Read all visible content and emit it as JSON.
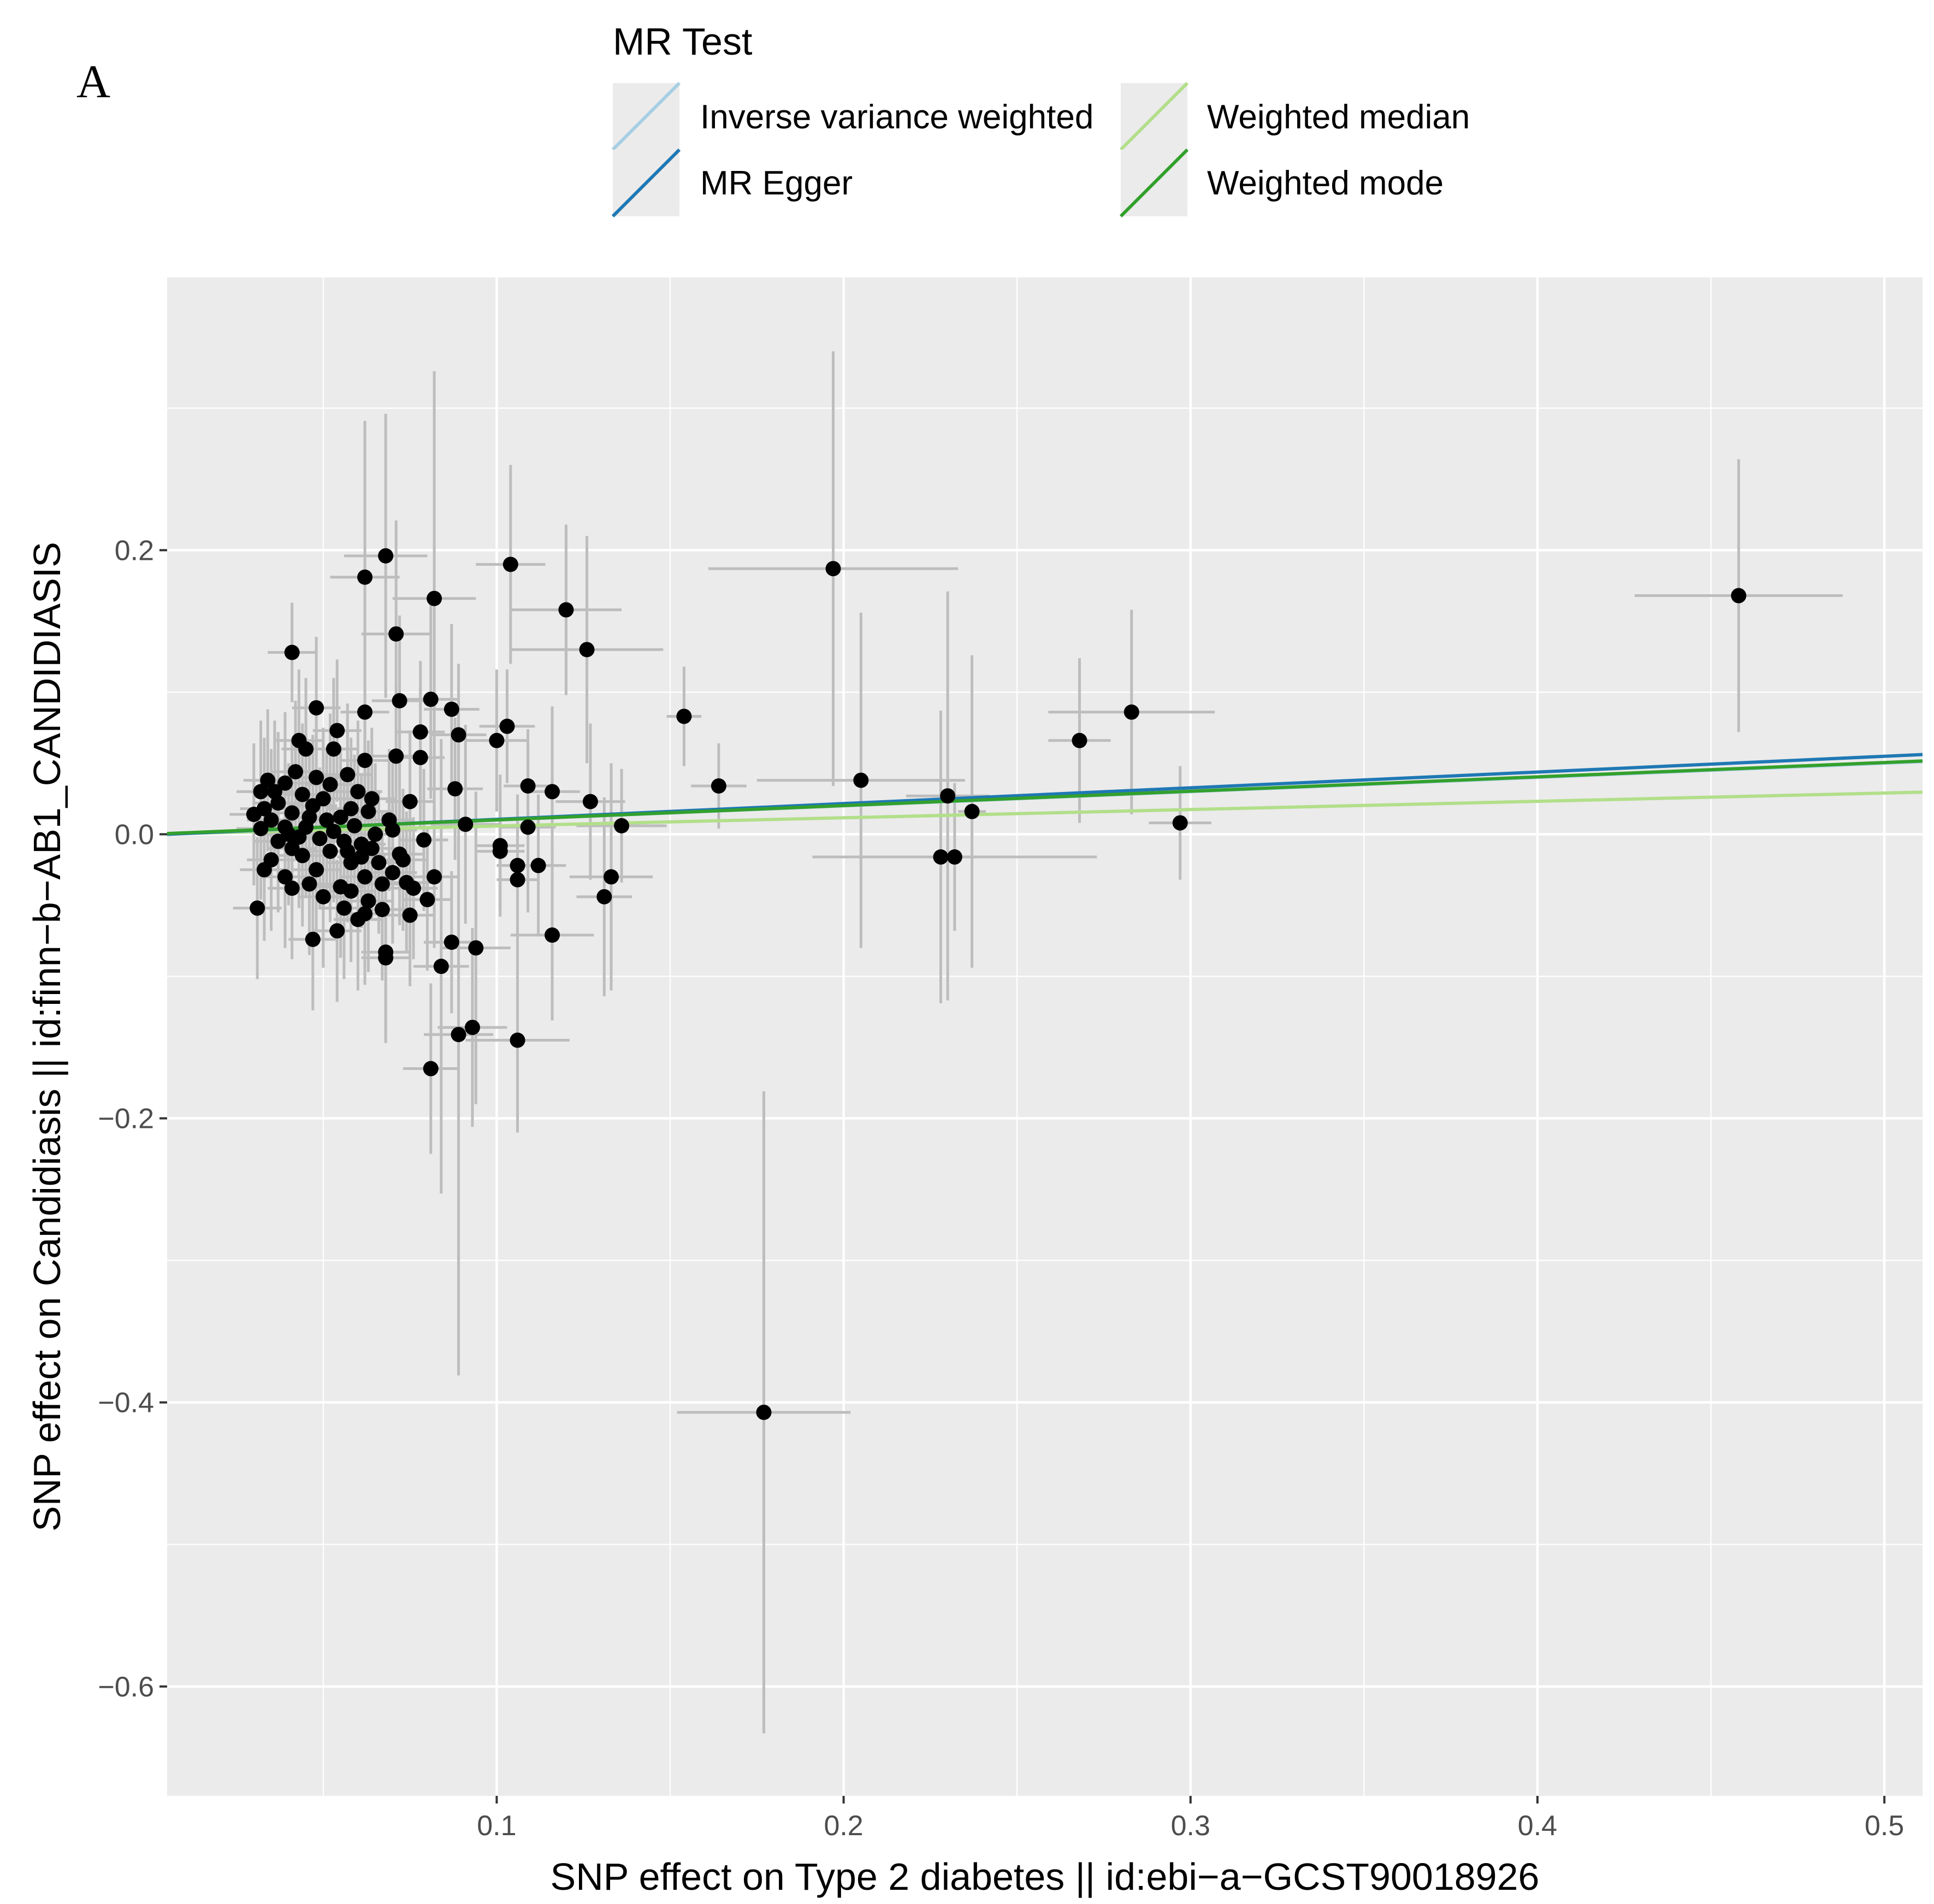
{
  "panel_label": "A",
  "chart_data": {
    "type": "scatter",
    "title": "",
    "xlabel": "SNP effect on Type 2 diabetes || id:ebi−a−GCST90018926",
    "ylabel": "SNP effect on Candidiasis || id:finn−b−AB1_CANDIDIASIS",
    "xlim": [
      0.005,
      0.511
    ],
    "ylim": [
      -0.677,
      0.392
    ],
    "x_ticks": [
      0.1,
      0.2,
      0.3,
      0.4,
      0.5
    ],
    "x_tick_labels": [
      "0.1",
      "0.2",
      "0.3",
      "0.4",
      "0.5"
    ],
    "y_ticks": [
      -0.6,
      -0.4,
      -0.2,
      0.0,
      0.2
    ],
    "y_tick_labels": [
      "−0.6",
      "−0.4",
      "−0.2",
      "0.0",
      "0.2"
    ],
    "grid": true,
    "legend": {
      "title": "MR Test",
      "placement": "top",
      "entries": [
        {
          "label": "Inverse variance weighted",
          "color": "#a6cee3"
        },
        {
          "label": "MR Egger",
          "color": "#1f78b4"
        },
        {
          "label": "Weighted median",
          "color": "#b2df8a"
        },
        {
          "label": "Weighted mode",
          "color": "#33a02c"
        }
      ]
    },
    "lines": [
      {
        "name": "Inverse variance weighted",
        "color": "#a6cee3",
        "slope": 0.1,
        "intercept": 0
      },
      {
        "name": "Weighted median",
        "color": "#b2df8a",
        "slope": 0.058,
        "intercept": 0
      },
      {
        "name": "MR Egger",
        "color": "#1f78b4",
        "slope": 0.111,
        "intercept": -0.0006
      },
      {
        "name": "Weighted mode",
        "color": "#33a02c",
        "slope": 0.101,
        "intercept": 0
      }
    ],
    "points": [
      {
        "x": 0.458,
        "y": 0.168,
        "xse": 0.03,
        "yse": 0.096
      },
      {
        "x": 0.197,
        "y": 0.187,
        "xse": 0.036,
        "yse": 0.153
      },
      {
        "x": 0.177,
        "y": -0.407,
        "xse": 0.025,
        "yse": 0.226
      },
      {
        "x": 0.268,
        "y": 0.066,
        "xse": 0.009,
        "yse": 0.058
      },
      {
        "x": 0.283,
        "y": 0.086,
        "xse": 0.024,
        "yse": 0.072
      },
      {
        "x": 0.297,
        "y": 0.008,
        "xse": 0.009,
        "yse": 0.04
      },
      {
        "x": 0.23,
        "y": 0.027,
        "xse": 0.012,
        "yse": 0.144
      },
      {
        "x": 0.237,
        "y": 0.016,
        "xse": 0.004,
        "yse": 0.11
      },
      {
        "x": 0.228,
        "y": -0.016,
        "xse": 0.03,
        "yse": 0.103
      },
      {
        "x": 0.232,
        "y": -0.016,
        "xse": 0.041,
        "yse": 0.052
      },
      {
        "x": 0.205,
        "y": 0.038,
        "xse": 0.03,
        "yse": 0.118
      },
      {
        "x": 0.164,
        "y": 0.034,
        "xse": 0.008,
        "yse": 0.03
      },
      {
        "x": 0.154,
        "y": 0.083,
        "xse": 0.005,
        "yse": 0.035
      },
      {
        "x": 0.104,
        "y": 0.19,
        "xse": 0.01,
        "yse": 0.07
      },
      {
        "x": 0.12,
        "y": 0.158,
        "xse": 0.016,
        "yse": 0.06
      },
      {
        "x": 0.126,
        "y": 0.13,
        "xse": 0.022,
        "yse": 0.08
      },
      {
        "x": 0.127,
        "y": 0.023,
        "xse": 0.01,
        "yse": 0.055
      },
      {
        "x": 0.136,
        "y": 0.006,
        "xse": 0.013,
        "yse": 0.04
      },
      {
        "x": 0.133,
        "y": -0.03,
        "xse": 0.012,
        "yse": 0.08
      },
      {
        "x": 0.131,
        "y": -0.044,
        "xse": 0.008,
        "yse": 0.07
      },
      {
        "x": 0.116,
        "y": -0.071,
        "xse": 0.012,
        "yse": 0.06
      },
      {
        "x": 0.106,
        "y": -0.145,
        "xse": 0.015,
        "yse": 0.065
      },
      {
        "x": 0.094,
        "y": -0.08,
        "xse": 0.01,
        "yse": 0.11
      },
      {
        "x": 0.093,
        "y": -0.136,
        "xse": 0.01,
        "yse": 0.07
      },
      {
        "x": 0.089,
        "y": -0.141,
        "xse": 0.01,
        "yse": 0.24
      },
      {
        "x": 0.081,
        "y": -0.165,
        "xse": 0.008,
        "yse": 0.06
      },
      {
        "x": 0.084,
        "y": -0.093,
        "xse": 0.008,
        "yse": 0.16
      },
      {
        "x": 0.087,
        "y": -0.076,
        "xse": 0.008,
        "yse": 0.05
      },
      {
        "x": 0.082,
        "y": 0.166,
        "xse": 0.012,
        "yse": 0.16
      },
      {
        "x": 0.068,
        "y": 0.196,
        "xse": 0.012,
        "yse": 0.1
      },
      {
        "x": 0.062,
        "y": 0.181,
        "xse": 0.01,
        "yse": 0.11
      },
      {
        "x": 0.071,
        "y": 0.141,
        "xse": 0.01,
        "yse": 0.08
      },
      {
        "x": 0.041,
        "y": 0.128,
        "xse": 0.007,
        "yse": 0.035
      },
      {
        "x": 0.103,
        "y": 0.076,
        "xse": 0.008,
        "yse": 0.04
      },
      {
        "x": 0.1,
        "y": 0.066,
        "xse": 0.009,
        "yse": 0.05
      },
      {
        "x": 0.109,
        "y": 0.034,
        "xse": 0.007,
        "yse": 0.04
      },
      {
        "x": 0.116,
        "y": 0.03,
        "xse": 0.008,
        "yse": 0.06
      },
      {
        "x": 0.109,
        "y": 0.005,
        "xse": 0.008,
        "yse": 0.06
      },
      {
        "x": 0.101,
        "y": -0.008,
        "xse": 0.007,
        "yse": 0.05
      },
      {
        "x": 0.101,
        "y": -0.012,
        "xse": 0.007,
        "yse": 0.04
      },
      {
        "x": 0.106,
        "y": -0.022,
        "xse": 0.006,
        "yse": 0.05
      },
      {
        "x": 0.106,
        "y": -0.032,
        "xse": 0.006,
        "yse": 0.05
      },
      {
        "x": 0.112,
        "y": -0.022,
        "xse": 0.008,
        "yse": 0.05
      },
      {
        "x": 0.091,
        "y": 0.007,
        "xse": 0.01,
        "yse": 0.07
      },
      {
        "x": 0.089,
        "y": 0.07,
        "xse": 0.008,
        "yse": 0.05
      },
      {
        "x": 0.087,
        "y": 0.088,
        "xse": 0.008,
        "yse": 0.06
      },
      {
        "x": 0.088,
        "y": 0.032,
        "xse": 0.008,
        "yse": 0.05
      },
      {
        "x": 0.081,
        "y": 0.095,
        "xse": 0.008,
        "yse": 0.07
      },
      {
        "x": 0.072,
        "y": 0.094,
        "xse": 0.008,
        "yse": 0.06
      },
      {
        "x": 0.078,
        "y": 0.072,
        "xse": 0.007,
        "yse": 0.05
      },
      {
        "x": 0.078,
        "y": 0.054,
        "xse": 0.007,
        "yse": 0.05
      },
      {
        "x": 0.071,
        "y": 0.055,
        "xse": 0.007,
        "yse": 0.05
      },
      {
        "x": 0.075,
        "y": 0.023,
        "xse": 0.007,
        "yse": 0.05
      },
      {
        "x": 0.079,
        "y": -0.004,
        "xse": 0.007,
        "yse": 0.05
      },
      {
        "x": 0.082,
        "y": -0.03,
        "xse": 0.007,
        "yse": 0.05
      },
      {
        "x": 0.08,
        "y": -0.046,
        "xse": 0.007,
        "yse": 0.05
      },
      {
        "x": 0.075,
        "y": -0.057,
        "xse": 0.007,
        "yse": 0.05
      },
      {
        "x": 0.068,
        "y": -0.083,
        "xse": 0.007,
        "yse": 0.06
      },
      {
        "x": 0.068,
        "y": -0.087,
        "xse": 0.007,
        "yse": 0.06
      },
      {
        "x": 0.074,
        "y": -0.034,
        "xse": 0.007,
        "yse": 0.05
      },
      {
        "x": 0.07,
        "y": -0.027,
        "xse": 0.007,
        "yse": 0.05
      },
      {
        "x": 0.072,
        "y": -0.014,
        "xse": 0.007,
        "yse": 0.05
      },
      {
        "x": 0.069,
        "y": 0.01,
        "xse": 0.007,
        "yse": 0.05
      },
      {
        "x": 0.066,
        "y": -0.02,
        "xse": 0.007,
        "yse": 0.05
      },
      {
        "x": 0.067,
        "y": -0.053,
        "xse": 0.007,
        "yse": 0.05
      },
      {
        "x": 0.064,
        "y": 0.025,
        "xse": 0.007,
        "yse": 0.05
      },
      {
        "x": 0.062,
        "y": 0.086,
        "xse": 0.007,
        "yse": 0.06
      },
      {
        "x": 0.062,
        "y": 0.052,
        "xse": 0.007,
        "yse": 0.05
      },
      {
        "x": 0.063,
        "y": 0.016,
        "xse": 0.007,
        "yse": 0.05
      },
      {
        "x": 0.061,
        "y": -0.007,
        "xse": 0.007,
        "yse": 0.05
      },
      {
        "x": 0.062,
        "y": -0.03,
        "xse": 0.007,
        "yse": 0.05
      },
      {
        "x": 0.063,
        "y": -0.047,
        "xse": 0.007,
        "yse": 0.05
      },
      {
        "x": 0.06,
        "y": -0.06,
        "xse": 0.007,
        "yse": 0.05
      },
      {
        "x": 0.057,
        "y": 0.042,
        "xse": 0.007,
        "yse": 0.05
      },
      {
        "x": 0.058,
        "y": 0.018,
        "xse": 0.007,
        "yse": 0.05
      },
      {
        "x": 0.056,
        "y": -0.005,
        "xse": 0.007,
        "yse": 0.05
      },
      {
        "x": 0.058,
        "y": -0.02,
        "xse": 0.007,
        "yse": 0.05
      },
      {
        "x": 0.055,
        "y": -0.037,
        "xse": 0.007,
        "yse": 0.05
      },
      {
        "x": 0.056,
        "y": -0.052,
        "xse": 0.007,
        "yse": 0.05
      },
      {
        "x": 0.054,
        "y": -0.068,
        "xse": 0.007,
        "yse": 0.05
      },
      {
        "x": 0.054,
        "y": 0.073,
        "xse": 0.007,
        "yse": 0.05
      },
      {
        "x": 0.053,
        "y": 0.06,
        "xse": 0.007,
        "yse": 0.05
      },
      {
        "x": 0.052,
        "y": 0.035,
        "xse": 0.007,
        "yse": 0.05
      },
      {
        "x": 0.051,
        "y": 0.01,
        "xse": 0.007,
        "yse": 0.05
      },
      {
        "x": 0.052,
        "y": -0.012,
        "xse": 0.007,
        "yse": 0.05
      },
      {
        "x": 0.05,
        "y": -0.044,
        "xse": 0.007,
        "yse": 0.05
      },
      {
        "x": 0.048,
        "y": 0.089,
        "xse": 0.007,
        "yse": 0.05
      },
      {
        "x": 0.048,
        "y": 0.04,
        "xse": 0.007,
        "yse": 0.05
      },
      {
        "x": 0.047,
        "y": 0.02,
        "xse": 0.007,
        "yse": 0.05
      },
      {
        "x": 0.048,
        "y": -0.025,
        "xse": 0.007,
        "yse": 0.05
      },
      {
        "x": 0.047,
        "y": -0.074,
        "xse": 0.007,
        "yse": 0.05
      },
      {
        "x": 0.045,
        "y": 0.06,
        "xse": 0.007,
        "yse": 0.05
      },
      {
        "x": 0.044,
        "y": 0.028,
        "xse": 0.007,
        "yse": 0.05
      },
      {
        "x": 0.045,
        "y": 0.005,
        "xse": 0.007,
        "yse": 0.05
      },
      {
        "x": 0.044,
        "y": -0.015,
        "xse": 0.007,
        "yse": 0.05
      },
      {
        "x": 0.043,
        "y": 0.066,
        "xse": 0.007,
        "yse": 0.05
      },
      {
        "x": 0.042,
        "y": 0.044,
        "xse": 0.007,
        "yse": 0.05
      },
      {
        "x": 0.041,
        "y": 0.015,
        "xse": 0.007,
        "yse": 0.05
      },
      {
        "x": 0.041,
        "y": -0.01,
        "xse": 0.007,
        "yse": 0.05
      },
      {
        "x": 0.041,
        "y": -0.038,
        "xse": 0.007,
        "yse": 0.05
      },
      {
        "x": 0.039,
        "y": 0.036,
        "xse": 0.007,
        "yse": 0.05
      },
      {
        "x": 0.039,
        "y": 0.005,
        "xse": 0.007,
        "yse": 0.05
      },
      {
        "x": 0.039,
        "y": -0.03,
        "xse": 0.007,
        "yse": 0.05
      },
      {
        "x": 0.037,
        "y": 0.022,
        "xse": 0.007,
        "yse": 0.05
      },
      {
        "x": 0.037,
        "y": -0.005,
        "xse": 0.007,
        "yse": 0.05
      },
      {
        "x": 0.036,
        "y": 0.03,
        "xse": 0.007,
        "yse": 0.05
      },
      {
        "x": 0.035,
        "y": 0.01,
        "xse": 0.007,
        "yse": 0.05
      },
      {
        "x": 0.035,
        "y": -0.018,
        "xse": 0.007,
        "yse": 0.05
      },
      {
        "x": 0.034,
        "y": 0.038,
        "xse": 0.007,
        "yse": 0.05
      },
      {
        "x": 0.033,
        "y": 0.018,
        "xse": 0.007,
        "yse": 0.05
      },
      {
        "x": 0.033,
        "y": -0.025,
        "xse": 0.007,
        "yse": 0.05
      },
      {
        "x": 0.032,
        "y": 0.03,
        "xse": 0.007,
        "yse": 0.05
      },
      {
        "x": 0.032,
        "y": 0.004,
        "xse": 0.007,
        "yse": 0.05
      },
      {
        "x": 0.031,
        "y": -0.052,
        "xse": 0.007,
        "yse": 0.05
      },
      {
        "x": 0.03,
        "y": 0.014,
        "xse": 0.007,
        "yse": 0.05
      },
      {
        "x": 0.04,
        "y": 0.0,
        "xse": 0.007,
        "yse": 0.05
      },
      {
        "x": 0.043,
        "y": -0.002,
        "xse": 0.007,
        "yse": 0.05
      },
      {
        "x": 0.046,
        "y": 0.012,
        "xse": 0.007,
        "yse": 0.05
      },
      {
        "x": 0.049,
        "y": -0.003,
        "xse": 0.007,
        "yse": 0.05
      },
      {
        "x": 0.05,
        "y": 0.025,
        "xse": 0.007,
        "yse": 0.05
      },
      {
        "x": 0.053,
        "y": 0.002,
        "xse": 0.007,
        "yse": 0.05
      },
      {
        "x": 0.055,
        "y": 0.012,
        "xse": 0.007,
        "yse": 0.05
      },
      {
        "x": 0.057,
        "y": -0.012,
        "xse": 0.007,
        "yse": 0.05
      },
      {
        "x": 0.059,
        "y": 0.006,
        "xse": 0.007,
        "yse": 0.05
      },
      {
        "x": 0.06,
        "y": 0.03,
        "xse": 0.007,
        "yse": 0.05
      },
      {
        "x": 0.061,
        "y": -0.016,
        "xse": 0.007,
        "yse": 0.05
      },
      {
        "x": 0.064,
        "y": -0.01,
        "xse": 0.007,
        "yse": 0.05
      },
      {
        "x": 0.065,
        "y": 0.0,
        "xse": 0.007,
        "yse": 0.05
      },
      {
        "x": 0.067,
        "y": -0.035,
        "xse": 0.007,
        "yse": 0.05
      },
      {
        "x": 0.07,
        "y": 0.003,
        "xse": 0.007,
        "yse": 0.05
      },
      {
        "x": 0.073,
        "y": -0.018,
        "xse": 0.007,
        "yse": 0.05
      },
      {
        "x": 0.076,
        "y": -0.038,
        "xse": 0.007,
        "yse": 0.05
      },
      {
        "x": 0.058,
        "y": -0.04,
        "xse": 0.007,
        "yse": 0.05
      },
      {
        "x": 0.062,
        "y": -0.056,
        "xse": 0.007,
        "yse": 0.05
      },
      {
        "x": 0.046,
        "y": -0.035,
        "xse": 0.007,
        "yse": 0.05
      }
    ]
  }
}
